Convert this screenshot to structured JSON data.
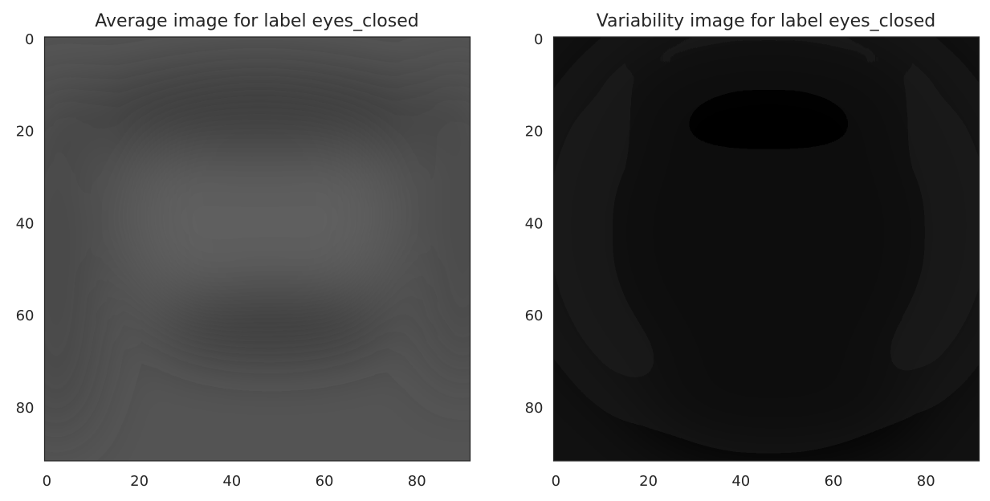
{
  "chart_data": [
    {
      "type": "heatmap",
      "title": "Average image for label eyes_closed",
      "colormap": "gray",
      "image_shape": [
        92,
        92
      ],
      "xlim": [
        -0.5,
        91.5
      ],
      "ylim": [
        91.5,
        -0.5
      ],
      "xticks": [
        0,
        20,
        40,
        60,
        80
      ],
      "yticks": [
        0,
        20,
        40,
        60,
        80
      ],
      "grid": false,
      "background_value": "#545454",
      "features": [
        {
          "name": "center-light",
          "cx": 46,
          "cy": 38,
          "rx": 28,
          "ry": 26,
          "color": "#5f5f5f",
          "opacity": 0.9
        },
        {
          "name": "eyebrow-band",
          "cx": 46,
          "cy": 16,
          "rx": 40,
          "ry": 9,
          "color": "#303030",
          "opacity": 0.75
        },
        {
          "name": "closed-eyes-band",
          "cx": 49,
          "cy": 61,
          "rx": 25,
          "ry": 6.5,
          "color": "#2f2f2f",
          "opacity": 0.85
        },
        {
          "name": "left-edge-dark",
          "cx": 2,
          "cy": 48,
          "rx": 10,
          "ry": 40,
          "color": "#3f3f3f",
          "opacity": 0.6
        },
        {
          "name": "right-edge-dark",
          "cx": 90,
          "cy": 40,
          "rx": 10,
          "ry": 36,
          "color": "#444444",
          "opacity": 0.55
        }
      ]
    },
    {
      "type": "heatmap",
      "title": "Variability image for label eyes_closed",
      "colormap": "gray",
      "image_shape": [
        92,
        92
      ],
      "xlim": [
        -0.5,
        91.5
      ],
      "ylim": [
        91.5,
        -0.5
      ],
      "xticks": [
        0,
        20,
        40,
        60,
        80
      ],
      "yticks": [
        0,
        20,
        40,
        60,
        80
      ],
      "grid": false,
      "background_value": "#111111",
      "features": [
        {
          "name": "outer-ring-lighter",
          "cx": 46,
          "cy": 40,
          "rx": 52,
          "ry": 50,
          "color": "#171717",
          "opacity": 0.7
        },
        {
          "name": "center-dark",
          "cx": 46,
          "cy": 42,
          "rx": 34,
          "ry": 34,
          "color": "#080808",
          "opacity": 0.9
        },
        {
          "name": "top-dark",
          "cx": 46,
          "cy": 14,
          "rx": 30,
          "ry": 10,
          "color": "#050505",
          "opacity": 0.8
        },
        {
          "name": "lower-dark",
          "cx": 48,
          "cy": 80,
          "rx": 30,
          "ry": 12,
          "color": "#070707",
          "opacity": 0.8
        },
        {
          "name": "eye-band-faint",
          "cx": 52,
          "cy": 62,
          "rx": 24,
          "ry": 6,
          "color": "#121212",
          "opacity": 0.5
        }
      ]
    }
  ]
}
